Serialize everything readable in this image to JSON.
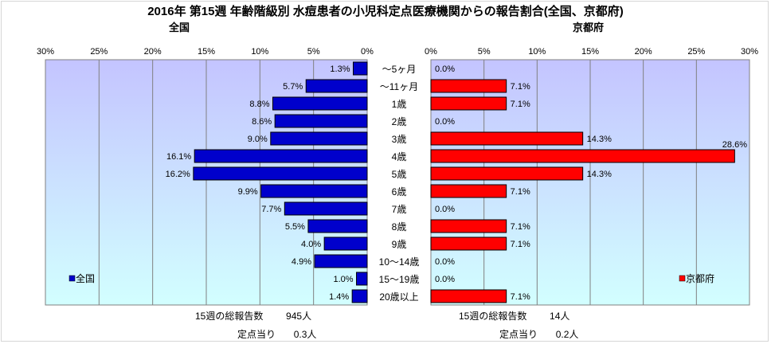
{
  "title": "2016年 第15週 年齢階級別 水痘患者の小児科定点医療機関からの報告割合(全国、京都府)",
  "chart_data": {
    "type": "bar",
    "orientation": "horizontal",
    "categories": [
      "～5ヶ月",
      "～11ヶ月",
      "1歳",
      "2歳",
      "3歳",
      "4歳",
      "5歳",
      "6歳",
      "7歳",
      "8歳",
      "9歳",
      "10～14歳",
      "15～19歳",
      "20歳以上"
    ],
    "series": [
      {
        "name": "全国",
        "side_title": "全国",
        "color": "#0000cc",
        "values": [
          1.3,
          5.7,
          8.8,
          8.6,
          9.0,
          16.1,
          16.2,
          9.9,
          7.7,
          5.5,
          4.0,
          4.9,
          1.0,
          1.4
        ],
        "data_labels": [
          "1.3%",
          "5.7%",
          "8.8%",
          "8.6%",
          "9.0%",
          "16.1%",
          "16.2%",
          "9.9%",
          "7.7%",
          "5.5%",
          "4.0%",
          "4.9%",
          "1.0%",
          "1.4%"
        ]
      },
      {
        "name": "京都府",
        "side_title": "京都府",
        "color": "#ff0000",
        "values": [
          0.0,
          7.1,
          7.1,
          0.0,
          14.3,
          28.6,
          14.3,
          7.1,
          0.0,
          7.1,
          7.1,
          0.0,
          0.0,
          7.1
        ],
        "data_labels": [
          "0.0%",
          "7.1%",
          "7.1%",
          "0.0%",
          "14.3%",
          "28.6%",
          "14.3%",
          "7.1%",
          "0.0%",
          "7.1%",
          "7.1%",
          "0.0%",
          "0.0%",
          "7.1%"
        ]
      }
    ],
    "xlim": [
      0,
      30
    ],
    "ticks": [
      0,
      5,
      10,
      15,
      20,
      25,
      30
    ],
    "tick_labels": [
      "0%",
      "5%",
      "10%",
      "15%",
      "20%",
      "25%",
      "30%"
    ],
    "grid": true,
    "legend": [
      "bottom-left",
      "bottom-right"
    ],
    "colors": {
      "plot_bg_top": "#c4c4ff",
      "plot_bg_bottom": "#d2ffff"
    }
  },
  "footer": {
    "national": {
      "total_label": "15週の総報告数",
      "total_value": "945人",
      "per_label": "定点当り",
      "per_value": "0.3人"
    },
    "kyoto": {
      "total_label": "15週の総報告数",
      "total_value": "14人",
      "per_label": "定点当り",
      "per_value": "0.2人"
    }
  }
}
